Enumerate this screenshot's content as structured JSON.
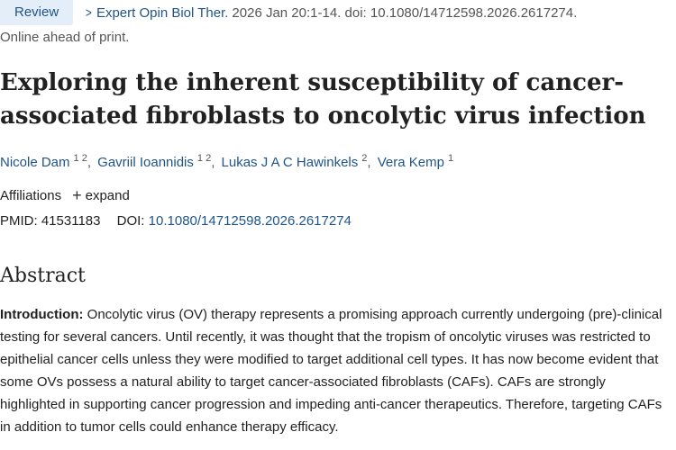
{
  "citation": {
    "badge": "Review",
    "journal": "Expert Opin Biol Ther.",
    "details": "2026 Jan 20:1-14. doi: 10.1080/14712598.2026.2617274."
  },
  "publication_status": "Online ahead of print.",
  "article": {
    "title": "Exploring the inherent susceptibility of cancer-associated fibroblasts to oncolytic virus infection"
  },
  "authors": [
    {
      "name": "Nicole Dam",
      "affs": "1 2"
    },
    {
      "name": "Gavriil Ioannidis",
      "affs": "1 2"
    },
    {
      "name": "Lukas J A C Hawinkels",
      "affs": "2"
    },
    {
      "name": "Vera Kemp",
      "affs": "1"
    }
  ],
  "affiliations": {
    "label": "Affiliations",
    "expand_label": "expand",
    "expand_icon": "plus-icon"
  },
  "identifiers": {
    "pmid_label": "PMID:",
    "pmid": "41531183",
    "doi_label": "DOI:",
    "doi": "10.1080/14712598.2026.2617274"
  },
  "abstract": {
    "heading": "Abstract",
    "section_label": "Introduction:",
    "text": "Oncolytic virus (OV) therapy represents a promising approach currently undergoing (pre)-clinical testing for several cancers. Until recently, it was thought that the tropism of oncolytic viruses was restricted to epithelial cancer cells unless they were modified to target additional cell types. It has now become evident that some OVs possess a natural ability to target cancer-associated fibroblasts (CAFs). CAFs are strongly highlighted in supporting cancer progression and impeding anti-cancer therapeutics. Therefore, targeting CAFs in addition to tumor cells could enhance therapy efficacy."
  }
}
